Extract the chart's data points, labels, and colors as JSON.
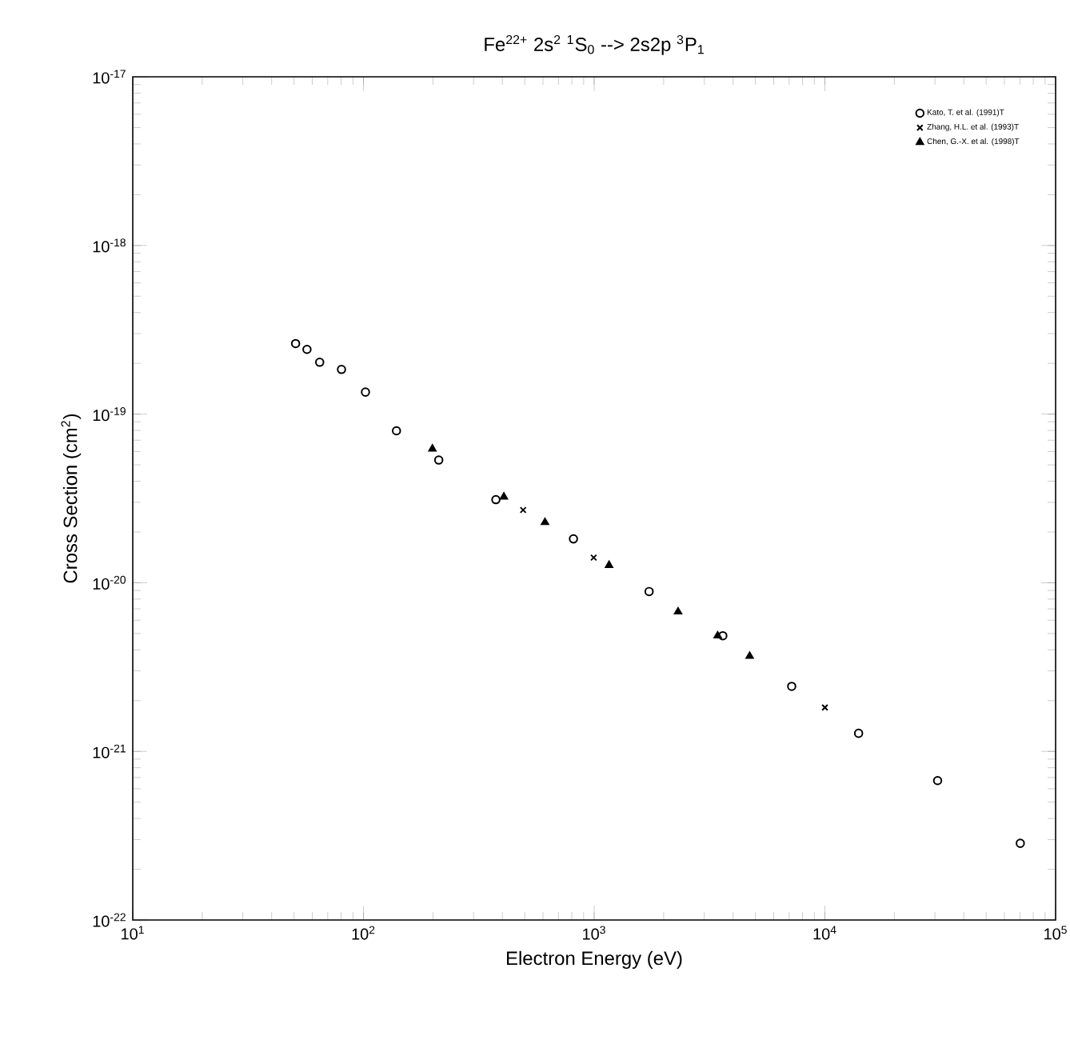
{
  "chart_data": {
    "type": "scatter",
    "title": "Fe$^{22+}$ 2s$^{2}$ $^{1}$S$_{0}$ --> 2s2p $^{3}$P$_{1}$",
    "xlabel": "Electron Energy (eV)",
    "ylabel": "Cross Section (cm$^{2}$)",
    "log": "xy",
    "legend": "top right",
    "grid": false,
    "xlim": [
      10,
      100000
    ],
    "ylim": [
      1e-22,
      1e-17
    ],
    "xticks": [
      {
        "value": 10,
        "label": "10$^{1}$"
      },
      {
        "value": 100,
        "label": "10$^{2}$"
      },
      {
        "value": 1000,
        "label": "10$^{3}$"
      },
      {
        "value": 10000,
        "label": "10$^{4}$"
      },
      {
        "value": 100000,
        "label": "10$^{5}$"
      }
    ],
    "yticks": [
      {
        "value": 1e-22,
        "label": "10$^{-22}$"
      },
      {
        "value": 1e-21,
        "label": "10$^{-21}$"
      },
      {
        "value": 1e-20,
        "label": "10$^{-20}$"
      },
      {
        "value": 1e-19,
        "label": "10$^{-19}$"
      },
      {
        "value": 1e-18,
        "label": "10$^{-18}$"
      },
      {
        "value": 1e-17,
        "label": "10$^{-17}$"
      }
    ],
    "series": [
      {
        "name": "Kato, T. et al. (1991)T",
        "color": "#000000",
        "marker": "circle",
        "x": [
          50.8,
          56.9,
          64.6,
          80.3,
          102,
          139,
          212,
          375,
          813,
          1730,
          3610,
          7180,
          14000,
          30800,
          70300
        ],
        "values": [
          2.62e-19,
          2.42e-19,
          2.03e-19,
          1.84e-19,
          1.35e-19,
          7.96e-20,
          5.34e-20,
          3.11e-20,
          1.82e-20,
          8.87e-21,
          4.85e-21,
          2.43e-21,
          1.28e-21,
          6.71e-22,
          2.85e-22
        ]
      },
      {
        "name": "Zhang, H.L. et al. (1993)T",
        "color": "#000000",
        "marker": "cross",
        "x": [
          492,
          995,
          10000
        ],
        "values": [
          2.7e-20,
          1.41e-20,
          1.82e-21
        ]
      },
      {
        "name": "Chen, G.-X. et al. (1998)T",
        "color": "#000000",
        "marker": "triangle",
        "x": [
          199,
          406,
          612,
          1160,
          2310,
          3430,
          4720
        ],
        "values": [
          6.22e-20,
          3.23e-20,
          2.28e-20,
          1.27e-20,
          6.73e-21,
          4.85e-21,
          3.67e-21
        ]
      }
    ]
  }
}
